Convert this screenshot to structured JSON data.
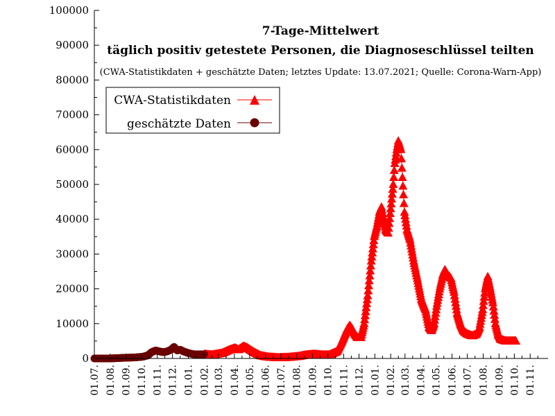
{
  "chart_data": {
    "type": "scatter",
    "title": "7-Tage-Mittelwert",
    "subtitle": "täglich positiv getestete Personen, die Diagnoseschlüssel teilten",
    "caption": "(CWA-Statistikdaten + geschätzte Daten; letztes Update: 13.07.2021; Quelle: Corona-Warn-App)",
    "xlabel": "",
    "ylabel": "",
    "ylim": [
      0,
      100000
    ],
    "yticks": [
      0,
      10000,
      20000,
      30000,
      40000,
      50000,
      60000,
      70000,
      80000,
      90000,
      100000
    ],
    "ytick_labels": [
      "0",
      "10000",
      "20000",
      "30000",
      "40000",
      "50000",
      "60000",
      "70000",
      "80000",
      "90000",
      "100000"
    ],
    "xticks": [
      {
        "label": "01.07.",
        "index": 0
      },
      {
        "label": "01.08.",
        "index": 31
      },
      {
        "label": "01.09.",
        "index": 62
      },
      {
        "label": "01.10.",
        "index": 92
      },
      {
        "label": "01.11.",
        "index": 123
      },
      {
        "label": "01.12.",
        "index": 153
      },
      {
        "label": "01.01.",
        "index": 184
      },
      {
        "label": "01.02.",
        "index": 215
      },
      {
        "label": "01.03.",
        "index": 243
      },
      {
        "label": "01.04.",
        "index": 274
      },
      {
        "label": "01.05.",
        "index": 304
      },
      {
        "label": "01.06.",
        "index": 335
      },
      {
        "label": "01.07.",
        "index": 365
      },
      {
        "label": "01.08.",
        "index": 396
      },
      {
        "label": "01.09.",
        "index": 427
      },
      {
        "label": "01.10.",
        "index": 457
      },
      {
        "label": "01.11.",
        "index": 488
      },
      {
        "label": "01.12.",
        "index": 518
      },
      {
        "label": "01.01.",
        "index": 549
      },
      {
        "label": "01.02.",
        "index": 580
      },
      {
        "label": "01.03.",
        "index": 608
      },
      {
        "label": "01.04.",
        "index": 639
      },
      {
        "label": "01.05.",
        "index": 669
      },
      {
        "label": "01.06.",
        "index": 700
      },
      {
        "label": "01.07.",
        "index": 730
      },
      {
        "label": "01.08.",
        "index": 761
      },
      {
        "label": "01.09.",
        "index": 792
      },
      {
        "label": "01.10.",
        "index": 822
      },
      {
        "label": "01.11.",
        "index": 853
      }
    ],
    "xlim": [
      0,
      888
    ],
    "grid": false,
    "legend": {
      "placement": "top-left"
    },
    "series": [
      {
        "name": "CWA-Statistikdaten",
        "marker": "triangle",
        "color": "#ff0000",
        "keypoints": [
          [
            215,
            1200
          ],
          [
            230,
            1000
          ],
          [
            250,
            1500
          ],
          [
            265,
            2500
          ],
          [
            275,
            3000
          ],
          [
            282,
            2500
          ],
          [
            292,
            3500
          ],
          [
            300,
            3000
          ],
          [
            310,
            2000
          ],
          [
            325,
            800
          ],
          [
            340,
            400
          ],
          [
            360,
            200
          ],
          [
            380,
            300
          ],
          [
            400,
            600
          ],
          [
            415,
            1000
          ],
          [
            430,
            1200
          ],
          [
            445,
            1000
          ],
          [
            460,
            1000
          ],
          [
            475,
            2000
          ],
          [
            485,
            5000
          ],
          [
            495,
            8500
          ],
          [
            500,
            9500
          ],
          [
            505,
            8500
          ],
          [
            510,
            7000
          ],
          [
            515,
            6000
          ],
          [
            522,
            6000
          ],
          [
            528,
            10000
          ],
          [
            535,
            18000
          ],
          [
            542,
            28000
          ],
          [
            548,
            35000
          ],
          [
            553,
            38000
          ],
          [
            558,
            42000
          ],
          [
            562,
            43500
          ],
          [
            566,
            40000
          ],
          [
            570,
            37000
          ],
          [
            575,
            36000
          ],
          [
            580,
            43000
          ],
          [
            585,
            50000
          ],
          [
            588,
            56000
          ],
          [
            592,
            60000
          ],
          [
            595,
            62500
          ],
          [
            600,
            60000
          ],
          [
            603,
            52000
          ],
          [
            607,
            42000
          ],
          [
            612,
            37000
          ],
          [
            618,
            34000
          ],
          [
            625,
            28000
          ],
          [
            632,
            23000
          ],
          [
            640,
            17000
          ],
          [
            648,
            14000
          ],
          [
            655,
            9000
          ],
          [
            660,
            8000
          ],
          [
            665,
            10000
          ],
          [
            670,
            15000
          ],
          [
            676,
            20000
          ],
          [
            682,
            24000
          ],
          [
            686,
            25500
          ],
          [
            692,
            24000
          ],
          [
            698,
            23000
          ],
          [
            704,
            19000
          ],
          [
            710,
            13000
          ],
          [
            716,
            10000
          ],
          [
            722,
            8000
          ],
          [
            730,
            7000
          ],
          [
            740,
            6500
          ],
          [
            748,
            7000
          ],
          [
            754,
            9000
          ],
          [
            760,
            14000
          ],
          [
            765,
            20000
          ],
          [
            770,
            23500
          ],
          [
            775,
            20000
          ],
          [
            780,
            16000
          ],
          [
            785,
            10000
          ],
          [
            790,
            7000
          ],
          [
            795,
            5500
          ],
          [
            805,
            5000
          ],
          [
            815,
            5000
          ],
          [
            825,
            5000
          ]
        ]
      },
      {
        "name": "geschätzte Daten",
        "marker": "circle",
        "color": "#6b0000",
        "keypoints": [
          [
            0,
            0
          ],
          [
            30,
            0
          ],
          [
            60,
            200
          ],
          [
            80,
            300
          ],
          [
            95,
            500
          ],
          [
            105,
            900
          ],
          [
            112,
            1800
          ],
          [
            120,
            2300
          ],
          [
            128,
            2000
          ],
          [
            135,
            1800
          ],
          [
            142,
            2000
          ],
          [
            150,
            2500
          ],
          [
            156,
            3300
          ],
          [
            162,
            2300
          ],
          [
            168,
            2500
          ],
          [
            175,
            2000
          ],
          [
            185,
            1500
          ],
          [
            195,
            1200
          ],
          [
            215,
            1200
          ]
        ]
      }
    ]
  }
}
